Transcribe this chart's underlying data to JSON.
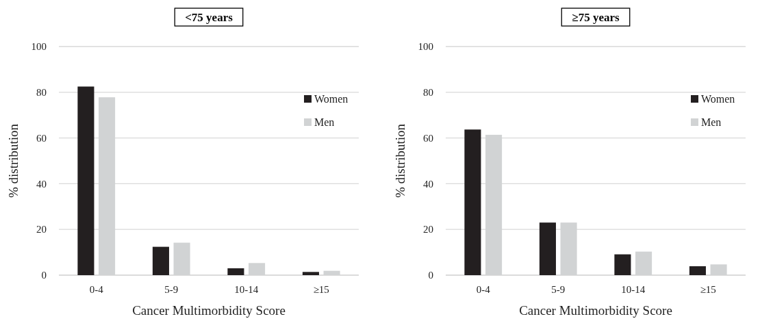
{
  "chart_data": [
    {
      "type": "bar",
      "title": "<75 years",
      "xlabel": "Cancer Multimorbidity Score",
      "ylabel": "% distribution",
      "categories": [
        "0-4",
        "5-9",
        "10-14",
        "≥15"
      ],
      "series": [
        {
          "name": "Women",
          "color": "#231f20",
          "values": [
            82.5,
            12.4,
            3.0,
            1.4
          ]
        },
        {
          "name": "Men",
          "color": "#d1d3d4",
          "values": [
            77.8,
            14.2,
            5.3,
            1.9
          ]
        }
      ],
      "ylim": [
        0,
        100
      ],
      "yticks": [
        0,
        20,
        40,
        60,
        80,
        100
      ],
      "grid": "y",
      "legend": "top right"
    },
    {
      "type": "bar",
      "title": "≥75 years",
      "xlabel": "Cancer Multimorbidity Score",
      "ylabel": "% distribution",
      "categories": [
        "0-4",
        "5-9",
        "10-14",
        "≥15"
      ],
      "series": [
        {
          "name": "Women",
          "color": "#231f20",
          "values": [
            63.7,
            23.0,
            9.1,
            3.9
          ]
        },
        {
          "name": "Men",
          "color": "#d1d3d4",
          "values": [
            61.4,
            23.0,
            10.3,
            4.7
          ]
        }
      ],
      "ylim": [
        0,
        100
      ],
      "yticks": [
        0,
        20,
        40,
        60,
        80,
        100
      ],
      "grid": "y",
      "legend": "top right"
    }
  ]
}
